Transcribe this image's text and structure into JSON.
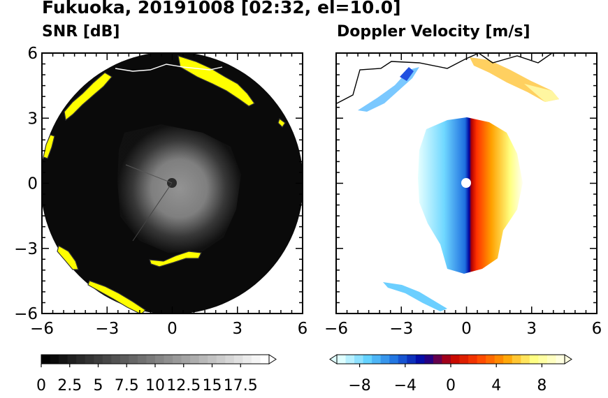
{
  "title": "Fukuoka, 20191008 [02:32, el=10.0]",
  "colors": {
    "snr_ramp": [
      "#000000",
      "#ffffff"
    ],
    "snr_saturation": "#ffff00",
    "velocity_ramp": [
      "#e0ffff",
      "#5fd0ff",
      "#1e6fe0",
      "#0000a0",
      "#c00000",
      "#ff4000",
      "#ffa000",
      "#ffff80",
      "#ffffe0"
    ],
    "coastline": "#000000"
  },
  "chart_data": [
    {
      "type": "heatmap",
      "title": "SNR [dB]",
      "x_ticks": [
        "−6",
        "−3",
        "0",
        "3",
        "6"
      ],
      "y_ticks": [
        "6",
        "3",
        "0",
        "−3",
        "−6"
      ],
      "xlim": [
        -6,
        6
      ],
      "ylim": [
        -6,
        6
      ],
      "colorbar": {
        "min": 0,
        "max": 20,
        "extend": "max",
        "ticks": [
          "0",
          "2.5",
          "5",
          "7.5",
          "10",
          "12.5",
          "15",
          "17.5"
        ]
      }
    },
    {
      "type": "heatmap",
      "title": "Doppler Velocity [m/s]",
      "x_ticks": [
        "−6",
        "−3",
        "0",
        "3",
        "6"
      ],
      "y_ticks": [],
      "xlim": [
        -6,
        6
      ],
      "ylim": [
        -6,
        6
      ],
      "colorbar": {
        "min": -10,
        "max": 10,
        "extend": "both",
        "ticks": [
          "−8",
          "−4",
          "0",
          "4",
          "8"
        ]
      }
    }
  ]
}
